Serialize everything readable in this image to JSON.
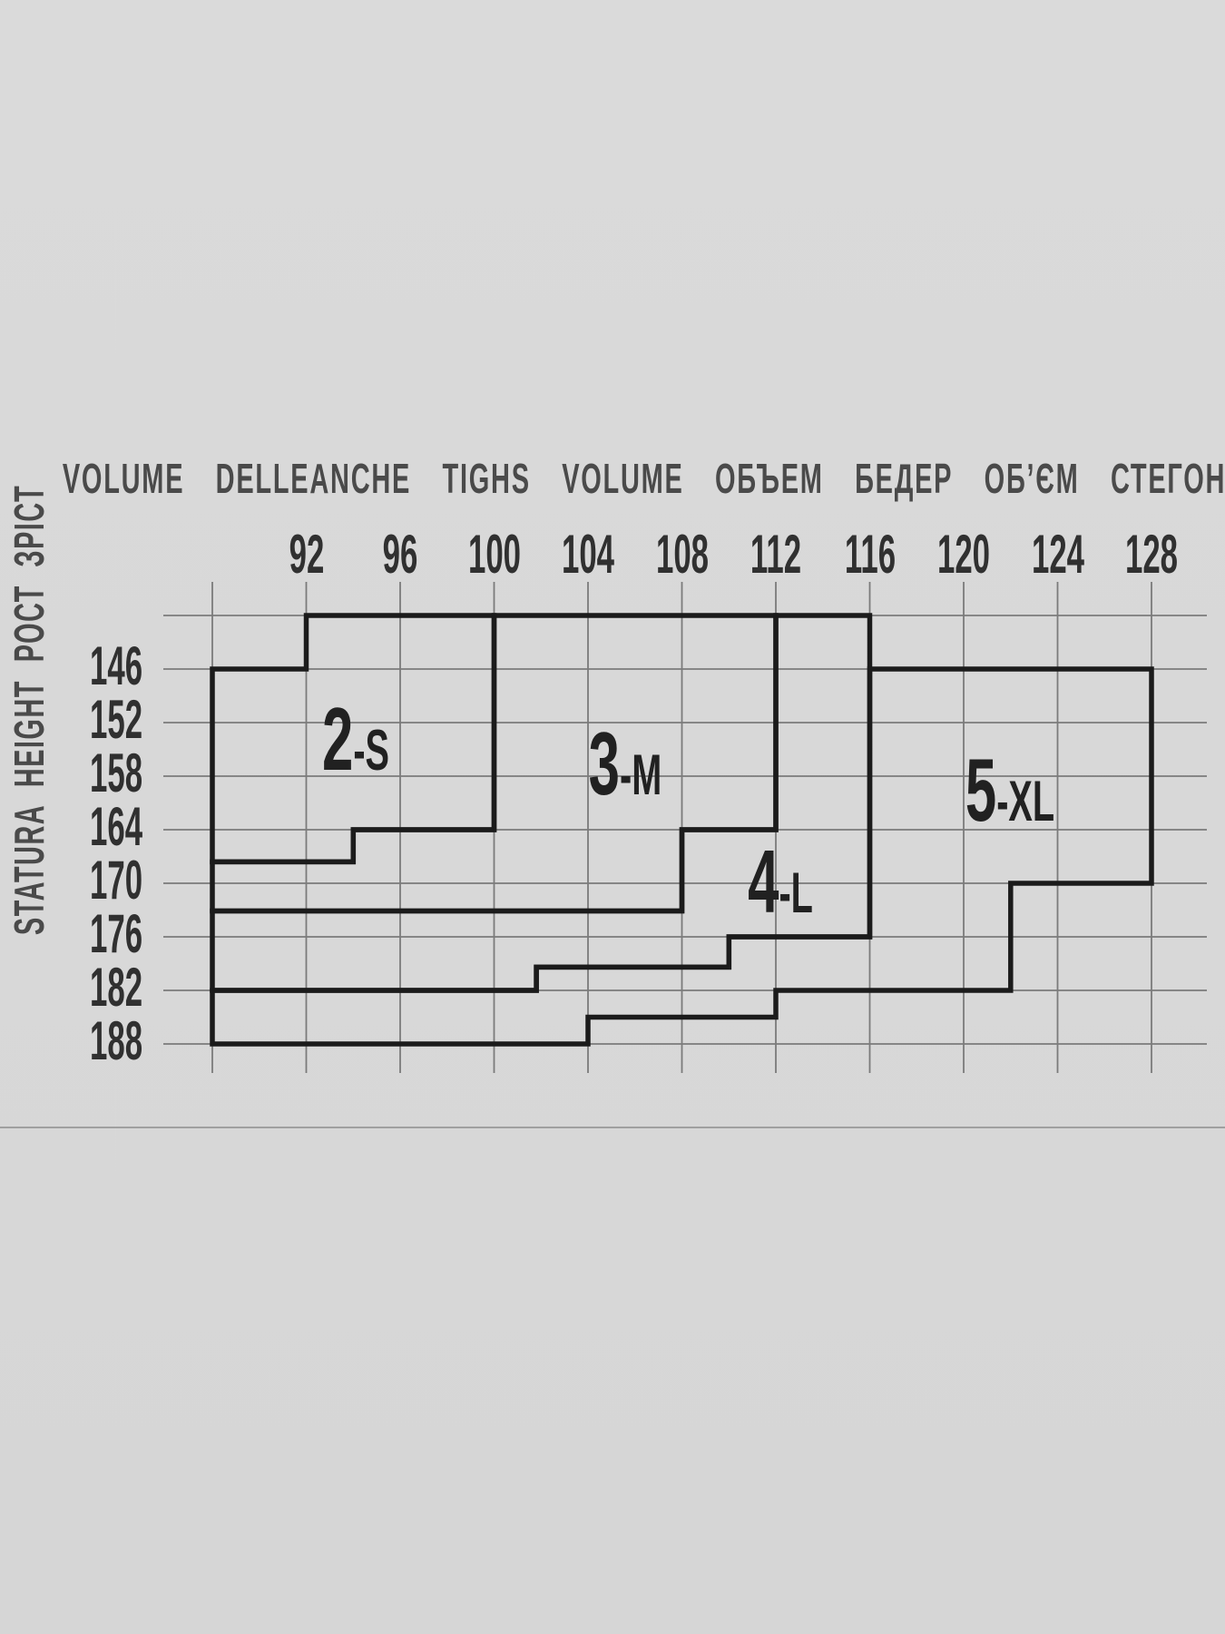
{
  "header": {
    "title": "VOLUME DELLEANCHE TIGHS VOLUME ОБЪЕМ БЕДЕР ОБ’ЄМ СТЕГОН"
  },
  "left_axis": {
    "title": "STATURA HEIGHT РОСТ ЗРІСТ"
  },
  "colors": {
    "background": "#d9d9d9",
    "grid_thin": "#7b7b7b",
    "grid_thick": "#1b1b1b",
    "header_text": "#4a4a4a",
    "tick_text": "#303030",
    "size_text": "#212121",
    "separator": "#a0a0a0"
  },
  "chart_data": {
    "type": "heatmap",
    "description": "Tights size chart grid: hip volume (cm) across the top vs body height (cm) down the left; stepped outlined regions mark sizes",
    "x_axis": {
      "title": "VOLUME DELLEANCHE TIGHS VOLUME ОБЪЕМ БЕДЕР ОБ’ЄМ СТЕГОН",
      "tick_labels": [
        92,
        96,
        100,
        104,
        108,
        112,
        116,
        120,
        124,
        128
      ],
      "gridlines": [
        88,
        92,
        96,
        100,
        104,
        108,
        112,
        116,
        120,
        124,
        128
      ],
      "range": [
        88,
        128
      ],
      "grid": true,
      "tick_position": "top"
    },
    "y_axis": {
      "title": "STATURA HEIGHT РОСТ ЗРІСТ",
      "tick_labels": [
        146,
        152,
        158,
        164,
        170,
        176,
        182,
        188
      ],
      "gridlines": [
        140,
        146,
        152,
        158,
        164,
        170,
        176,
        182,
        188
      ],
      "range": [
        140,
        188
      ],
      "grid": true,
      "tick_position": "left"
    },
    "regions": [
      {
        "label": "2-S",
        "polygon": [
          [
            92,
            140
          ],
          [
            100,
            140
          ],
          [
            100,
            164
          ],
          [
            94,
            164
          ],
          [
            94,
            167.6
          ],
          [
            88,
            167.6
          ],
          [
            88,
            146
          ],
          [
            92,
            146
          ]
        ]
      },
      {
        "label": "3-M",
        "polygon": [
          [
            100,
            140
          ],
          [
            112,
            140
          ],
          [
            112,
            164
          ],
          [
            108,
            164
          ],
          [
            108,
            173.1
          ],
          [
            88,
            173.1
          ],
          [
            88,
            167.6
          ],
          [
            94,
            167.6
          ],
          [
            94,
            164
          ],
          [
            100,
            164
          ]
        ]
      },
      {
        "label": "4-L",
        "polygon": [
          [
            112,
            140
          ],
          [
            116,
            140
          ],
          [
            116,
            176
          ],
          [
            110,
            176
          ],
          [
            110,
            179.4
          ],
          [
            101.8,
            179.4
          ],
          [
            101.8,
            182
          ],
          [
            88,
            182
          ],
          [
            88,
            173.1
          ],
          [
            108,
            173.1
          ],
          [
            108,
            164
          ],
          [
            112,
            164
          ]
        ]
      },
      {
        "label": "5-XL",
        "polygon": [
          [
            116,
            146
          ],
          [
            128,
            146
          ],
          [
            128,
            170
          ],
          [
            122,
            170
          ],
          [
            122,
            182
          ],
          [
            112,
            182
          ],
          [
            112,
            185
          ],
          [
            104,
            185
          ],
          [
            104,
            188
          ],
          [
            88,
            188
          ],
          [
            88,
            182
          ],
          [
            101.8,
            182
          ],
          [
            101.8,
            179.4
          ],
          [
            110,
            179.4
          ],
          [
            110,
            176
          ],
          [
            116,
            176
          ]
        ]
      }
    ],
    "labels": [
      {
        "main": "2",
        "suffix": "-S",
        "x": 94.11,
        "y": 157.29
      },
      {
        "main": "3",
        "suffix": "-M",
        "x": 105.58,
        "y": 160.03
      },
      {
        "main": "4",
        "suffix": "-L",
        "x": 112.19,
        "y": 173.25
      },
      {
        "main": "5",
        "suffix": "-XL",
        "x": 121.97,
        "y": 162.98
      }
    ]
  }
}
